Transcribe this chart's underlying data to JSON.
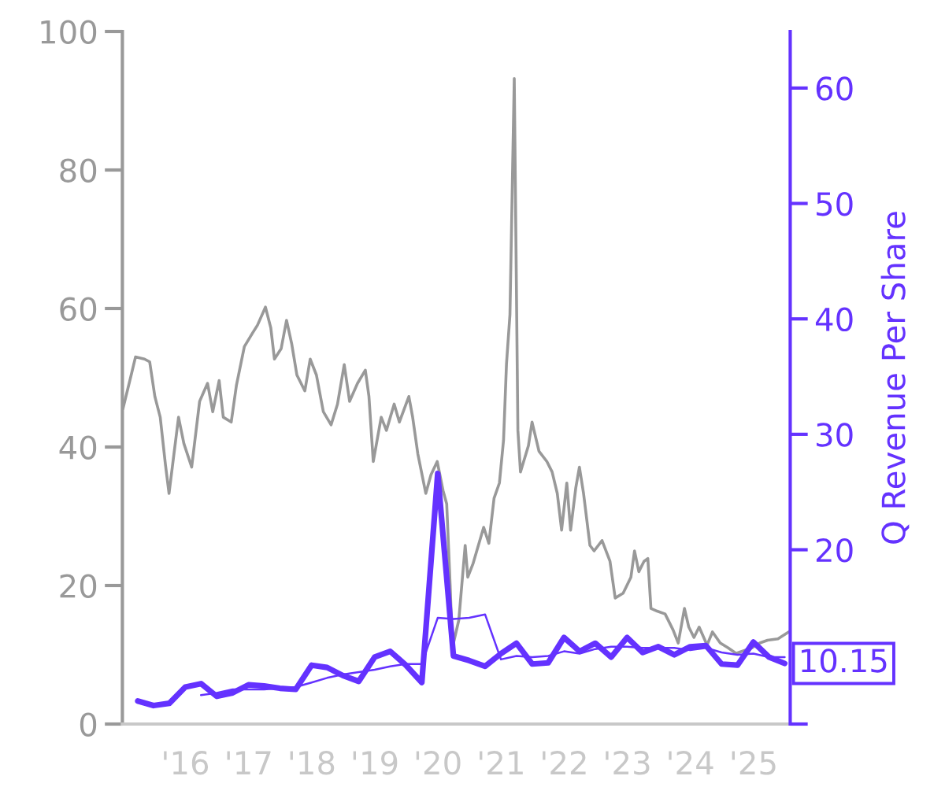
{
  "chart_data": {
    "type": "line",
    "y2label": "Q Revenue Per Share",
    "xlim": [
      "2015-01-01",
      "2025-08-01"
    ],
    "xticks": [
      {
        "value": "2015-01-01",
        "label": null
      },
      {
        "value": "2016-01-01",
        "label": "'16"
      },
      {
        "value": "2017-01-01",
        "label": "'17"
      },
      {
        "value": "2018-01-01",
        "label": "'18"
      },
      {
        "value": "2019-01-01",
        "label": "'19"
      },
      {
        "value": "2020-01-01",
        "label": "'20"
      },
      {
        "value": "2021-01-01",
        "label": "'21"
      },
      {
        "value": "2022-01-01",
        "label": "'22"
      },
      {
        "value": "2023-01-01",
        "label": "'23"
      },
      {
        "value": "2024-01-01",
        "label": "'24"
      },
      {
        "value": "2025-01-01",
        "label": "'25"
      },
      {
        "value": "2025-08-01",
        "label": null
      }
    ],
    "ylim": [
      0,
      100
    ],
    "yticks": [
      0,
      20,
      40,
      60,
      80,
      100
    ],
    "y2lim": [
      4.9,
      64.9
    ],
    "y2ticks": [
      {
        "value": 4.9,
        "label": null
      },
      20,
      30,
      40,
      50,
      60
    ],
    "series": [
      {
        "color": "#999999",
        "axis": "y",
        "x": [
          "2015-01-04",
          "2015-02-21",
          "2015-03-18",
          "2015-05-09",
          "2015-06-08",
          "2015-07-08",
          "2015-08-08",
          "2015-09-07",
          "2015-09-28",
          "2015-10-23",
          "2015-11-22",
          "2015-12-23",
          "2016-02-06",
          "2016-03-23",
          "2016-05-08",
          "2016-06-07",
          "2016-07-14",
          "2016-08-07",
          "2016-09-22",
          "2016-10-22",
          "2016-12-07",
          "2017-01-22",
          "2017-02-21",
          "2017-04-08",
          "2017-05-09",
          "2017-05-30",
          "2017-07-08",
          "2017-08-08",
          "2017-09-07",
          "2017-10-07",
          "2017-11-22",
          "2017-12-23",
          "2018-01-28",
          "2018-03-09",
          "2018-04-23",
          "2018-05-30",
          "2018-07-08",
          "2018-08-08",
          "2018-09-23",
          "2018-11-07",
          "2018-11-28",
          "2018-12-23",
          "2019-02-07",
          "2019-03-09",
          "2019-04-23",
          "2019-05-23",
          "2019-07-17",
          "2019-08-08",
          "2019-09-07",
          "2019-10-23",
          "2019-11-22",
          "2019-12-28",
          "2020-01-31",
          "2020-02-21",
          "2020-03-12",
          "2020-03-25",
          "2020-05-01",
          "2020-06-07",
          "2020-06-22",
          "2020-07-23",
          "2020-09-22",
          "2020-10-22",
          "2020-11-21",
          "2020-12-22",
          "2021-01-15",
          "2021-02-01",
          "2021-02-21",
          "2021-03-18",
          "2021-04-08",
          "2021-04-23",
          "2021-06-08",
          "2021-06-29",
          "2021-08-08",
          "2021-09-23",
          "2021-10-23",
          "2021-11-22",
          "2021-12-17",
          "2022-01-16",
          "2022-02-07",
          "2022-03-09",
          "2022-03-30",
          "2022-04-23",
          "2022-05-30",
          "2022-06-23",
          "2022-08-08",
          "2022-09-23",
          "2022-10-23",
          "2022-12-08",
          "2023-01-22",
          "2023-02-12",
          "2023-03-09",
          "2023-04-08",
          "2023-04-30",
          "2023-05-18",
          "2023-06-23",
          "2023-08-08",
          "2023-09-23",
          "2023-10-23",
          "2023-11-28",
          "2023-12-23",
          "2024-01-22",
          "2024-02-21",
          "2024-04-07",
          "2024-05-08",
          "2024-06-22",
          "2024-08-07",
          "2024-09-22",
          "2024-11-06",
          "2024-12-22",
          "2025-02-06",
          "2025-03-23",
          "2025-05-22",
          "2025-07-23"
        ],
        "values": [
          45.5,
          50.4,
          53.0,
          52.7,
          52.3,
          47.3,
          44.3,
          37.5,
          33.3,
          38.3,
          44.3,
          40.5,
          37.1,
          46.6,
          49.2,
          45.1,
          49.6,
          44.3,
          43.6,
          48.9,
          54.5,
          56.4,
          57.6,
          60.2,
          57.2,
          52.7,
          54.2,
          58.3,
          54.9,
          50.4,
          48.1,
          52.7,
          50.4,
          45.1,
          43.2,
          46.2,
          51.9,
          46.6,
          49.2,
          51.1,
          47.3,
          37.9,
          44.3,
          42.4,
          46.2,
          43.6,
          47.3,
          44.3,
          39.0,
          33.3,
          36.0,
          37.9,
          33.7,
          31.8,
          20.0,
          11.0,
          15.0,
          25.8,
          21.2,
          23.2,
          28.4,
          26.1,
          32.6,
          34.8,
          41.0,
          52.0,
          59.1,
          93.2,
          42.4,
          36.4,
          40.2,
          43.6,
          39.4,
          37.9,
          36.4,
          33.3,
          28.0,
          34.8,
          28.0,
          34.1,
          37.1,
          33.3,
          25.8,
          25.0,
          26.5,
          23.5,
          18.2,
          18.9,
          21.2,
          25.0,
          22.0,
          23.5,
          23.9,
          16.7,
          16.3,
          15.9,
          13.6,
          11.7,
          16.7,
          14.0,
          12.5,
          14.0,
          11.4,
          13.3,
          11.7,
          11.0,
          10.2,
          10.6,
          11.0,
          11.7,
          12.1,
          12.3,
          13.3
        ]
      },
      {
        "color": "#6432ff",
        "axis": "y2",
        "x": [
          "2015-03-31",
          "2015-06-30",
          "2015-09-30",
          "2015-12-31",
          "2016-03-31",
          "2016-06-30",
          "2016-09-30",
          "2016-12-31",
          "2017-03-31",
          "2017-06-30",
          "2017-09-30",
          "2017-12-31",
          "2018-03-31",
          "2018-06-30",
          "2018-09-30",
          "2018-12-31",
          "2019-03-31",
          "2019-06-30",
          "2019-09-30",
          "2019-12-31",
          "2020-03-31",
          "2020-06-30",
          "2020-09-30",
          "2020-12-31",
          "2021-03-31",
          "2021-06-30",
          "2021-09-30",
          "2021-12-31",
          "2022-03-31",
          "2022-06-30",
          "2022-09-30",
          "2022-12-31",
          "2023-03-31",
          "2023-06-30",
          "2023-09-30",
          "2023-12-31",
          "2024-03-31",
          "2024-06-30",
          "2024-09-30",
          "2024-12-31",
          "2025-03-31",
          "2025-06-30"
        ],
        "values": [
          6.9,
          6.5,
          6.7,
          8.1,
          8.4,
          7.3,
          7.6,
          8.3,
          8.2,
          8.0,
          7.9,
          10.0,
          9.8,
          9.1,
          8.6,
          10.7,
          11.2,
          10.0,
          8.5,
          26.6,
          10.8,
          10.4,
          9.9,
          11.0,
          11.9,
          10.1,
          10.2,
          12.4,
          11.2,
          11.9,
          10.7,
          12.4,
          11.1,
          11.6,
          10.9,
          11.6,
          11.7,
          10.1,
          10.0,
          12.0,
          10.7,
          10.15
        ],
        "value_labels": [
          null,
          null,
          null,
          null,
          null,
          null,
          null,
          null,
          null,
          null,
          null,
          null,
          null,
          null,
          null,
          null,
          null,
          null,
          null,
          null,
          null,
          null,
          null,
          null,
          null,
          null,
          null,
          null,
          null,
          null,
          null,
          null,
          null,
          null,
          null,
          null,
          null,
          null,
          null,
          null,
          null,
          "10.15"
        ]
      },
      {
        "color": "#6432ff",
        "axis": "y2",
        "x": [
          "2016-03-31",
          "2016-06-30",
          "2016-09-30",
          "2016-12-31",
          "2017-03-31",
          "2017-06-30",
          "2017-09-30",
          "2017-12-31",
          "2018-03-31",
          "2018-06-30",
          "2018-09-30",
          "2018-12-31",
          "2019-03-31",
          "2019-06-30",
          "2019-09-30",
          "2019-12-31",
          "2020-03-31",
          "2020-06-30",
          "2020-09-30",
          "2020-12-31",
          "2021-03-31",
          "2021-06-30",
          "2021-09-30",
          "2021-12-31",
          "2022-03-31",
          "2022-06-30",
          "2022-09-30",
          "2022-12-31",
          "2023-03-31",
          "2023-06-30",
          "2023-09-30",
          "2023-12-31",
          "2024-03-31",
          "2024-06-30",
          "2024-09-30",
          "2024-12-31",
          "2025-03-31",
          "2025-06-30"
        ],
        "values": [
          7.4,
          7.6,
          7.9,
          7.9,
          7.9,
          8.0,
          8.1,
          8.5,
          8.9,
          9.2,
          9.4,
          9.6,
          9.9,
          10.1,
          10.1,
          14.1,
          14.0,
          14.1,
          14.4,
          10.5,
          10.8,
          10.7,
          10.8,
          11.2,
          11.0,
          11.4,
          11.6,
          11.6,
          11.5,
          11.5,
          11.5,
          11.3,
          11.5,
          11.1,
          10.9,
          11.0,
          10.7,
          10.7
        ]
      }
    ]
  }
}
